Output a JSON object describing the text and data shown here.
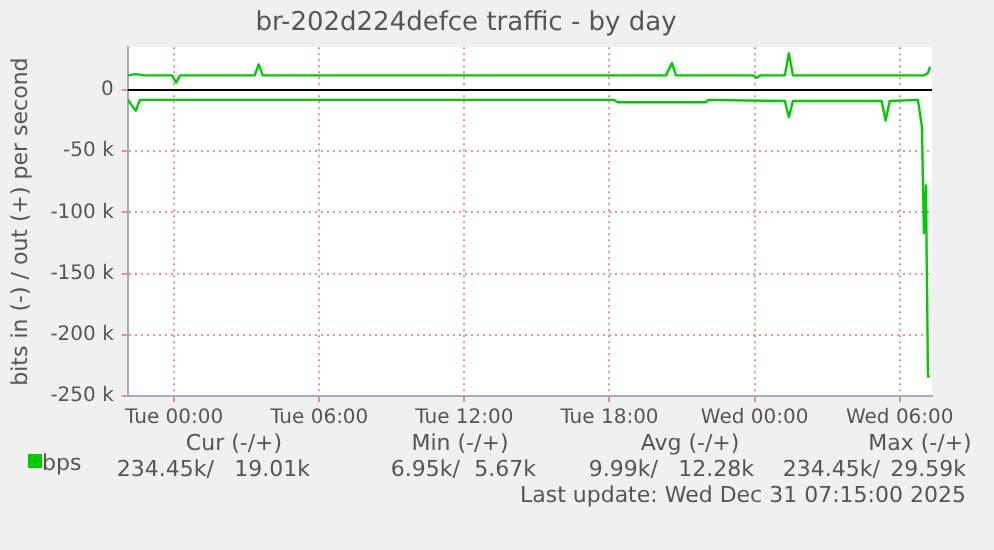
{
  "chart_data": {
    "type": "line",
    "title": "br-202d224defce traffic - by day",
    "ylabel": "bits in (-) / out (+) per second",
    "xlim": [
      "2025-12-29T22:05",
      "2025-12-31T07:20"
    ],
    "xticks": [
      {
        "value": "2025-12-30T00:00",
        "label": "Tue 00:00"
      },
      {
        "value": "2025-12-30T06:00",
        "label": "Tue 06:00"
      },
      {
        "value": "2025-12-30T12:00",
        "label": "Tue 12:00"
      },
      {
        "value": "2025-12-30T18:00",
        "label": "Tue 18:00"
      },
      {
        "value": "2025-12-31T00:00",
        "label": "Wed 00:00"
      },
      {
        "value": "2025-12-31T06:00",
        "label": "Wed 06:00"
      }
    ],
    "ylim": [
      -250000,
      35000
    ],
    "yticks": [
      {
        "value": -250000,
        "label": "-250 k"
      },
      {
        "value": -200000,
        "label": "-200 k"
      },
      {
        "value": -150000,
        "label": "-150 k"
      },
      {
        "value": -100000,
        "label": "-100 k"
      },
      {
        "value": -50000,
        "label": "-50 k"
      },
      0
    ],
    "grid": true,
    "legend": "bottom left",
    "marker": "none",
    "line_style": "solid",
    "ref_lines": [
      {
        "axis": "y",
        "value": 0,
        "color": "#000000"
      }
    ],
    "series": [
      {
        "name": "bps",
        "color": "#00cc00",
        "x": [
          "2025-12-29T22:05",
          "2025-12-29T22:25",
          "2025-12-29T22:45",
          "2025-12-29T23:55",
          "2025-12-30T00:05",
          "2025-12-30T00:15",
          "2025-12-30T03:20",
          "2025-12-30T03:30",
          "2025-12-30T03:40",
          "2025-12-30T09:10",
          "2025-12-30T20:20",
          "2025-12-30T20:35",
          "2025-12-30T20:45",
          "2025-12-30T23:55",
          "2025-12-31T00:05",
          "2025-12-31T00:15",
          "2025-12-31T01:15",
          "2025-12-31T01:25",
          "2025-12-31T01:35",
          "2025-12-31T07:00",
          "2025-12-31T07:10",
          "2025-12-31T07:15"
        ],
        "values": [
          12000,
          13000,
          12000,
          12000,
          6000,
          12000,
          12000,
          21000,
          12000,
          12000,
          12000,
          22000,
          12000,
          12000,
          10000,
          12000,
          12000,
          30000,
          12000,
          12000,
          14000,
          19000
        ]
      },
      {
        "color": "#00cc00",
        "x": [
          "2025-12-29T22:05",
          "2025-12-29T22:25",
          "2025-12-29T22:35",
          "2025-12-30T05:00",
          "2025-12-30T18:10",
          "2025-12-30T18:20",
          "2025-12-30T22:00",
          "2025-12-30T22:05",
          "2025-12-31T01:15",
          "2025-12-31T01:25",
          "2025-12-31T01:35",
          "2025-12-31T05:15",
          "2025-12-31T05:25",
          "2025-12-31T05:35",
          "2025-12-31T06:45",
          "2025-12-31T06:55",
          "2025-12-31T07:00",
          "2025-12-31T07:05",
          "2025-12-31T07:10",
          "2025-12-31T07:15"
        ],
        "values": [
          -8000,
          -17000,
          -8000,
          -8000,
          -8000,
          -10000,
          -10000,
          -8000,
          -9000,
          -22000,
          -9000,
          -9000,
          -25000,
          -9000,
          -8000,
          -30000,
          -117000,
          -78000,
          -234000,
          -234000
        ]
      }
    ],
    "annotations": [
      "Cur (-/+)",
      "Min (-/+)",
      "Avg (-/+)",
      "Max (-/+)",
      "234.45k/",
      "19.01k",
      "6.95k/",
      "5.67k",
      "9.99k/",
      "12.28k",
      "234.45k/",
      "29.59k",
      "Last update: Wed Dec 31 07:15:00 2025"
    ]
  }
}
